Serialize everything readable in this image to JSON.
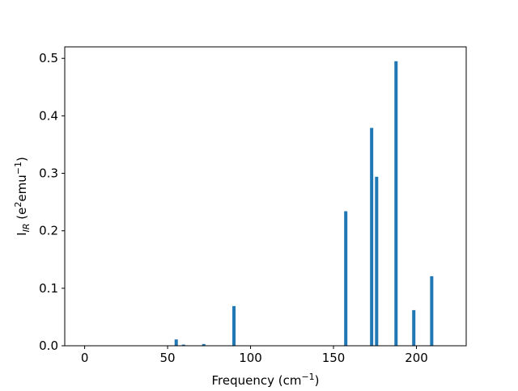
{
  "chart_data": {
    "type": "bar",
    "xlabel": [
      "Frequency (cm",
      "−1",
      ")"
    ],
    "ylabel": [
      "I",
      "IR",
      " (e",
      "2",
      "emu",
      "−1",
      ")"
    ],
    "x": [
      55.2,
      59.6,
      71.8,
      90,
      157.4,
      173,
      176,
      187.7,
      198.4,
      209.2
    ],
    "values": [
      0.011,
      0.002,
      0.003,
      0.069,
      0.234,
      0.379,
      0.294,
      0.495,
      0.062,
      0.121
    ],
    "color": "#1f77b4",
    "xlim": [
      -12,
      230
    ],
    "xticks": [
      0,
      50,
      100,
      150,
      200
    ],
    "ylim": [
      0,
      0.52
    ],
    "yticks": [
      {
        "value": 0,
        "label": "0.0"
      },
      0.1,
      0.2,
      0.3,
      0.4,
      0.5
    ]
  }
}
